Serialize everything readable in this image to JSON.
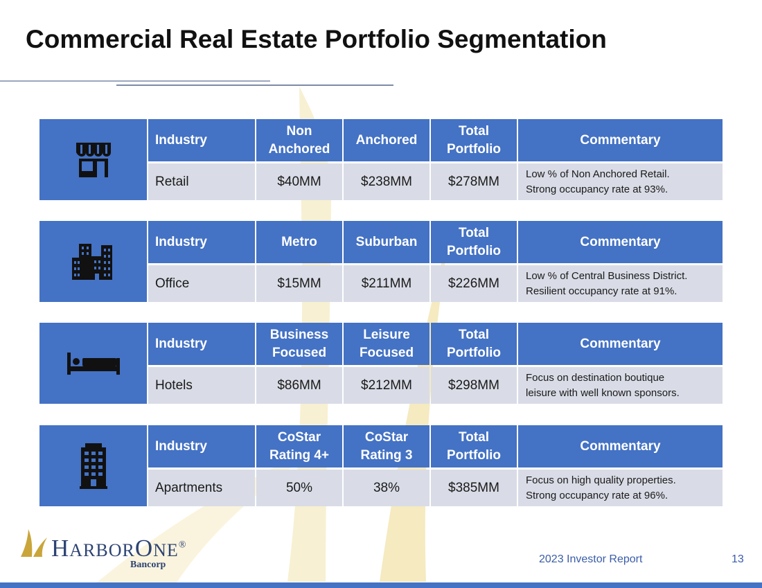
{
  "title": "Commercial Real Estate Portfolio Segmentation",
  "segments": [
    {
      "icon": "storefront-icon",
      "headers": [
        "Industry",
        "Non Anchored",
        "Anchored",
        "Total Portfolio",
        "Commentary"
      ],
      "row": [
        "Retail",
        "$40MM",
        "$238MM",
        "$278MM"
      ],
      "commentary": [
        "Low % of Non Anchored Retail.",
        "Strong occupancy rate at 93%."
      ]
    },
    {
      "icon": "office-buildings-icon",
      "headers": [
        "Industry",
        "Metro",
        "Suburban",
        "Total Portfolio",
        "Commentary"
      ],
      "row": [
        "Office",
        "$15MM",
        "$211MM",
        "$226MM"
      ],
      "commentary": [
        "Low % of Central Business District.",
        "Resilient occupancy rate at 91%."
      ]
    },
    {
      "icon": "hotel-bed-icon",
      "headers": [
        "Industry",
        "Business Focused",
        "Leisure Focused",
        "Total Portfolio",
        "Commentary"
      ],
      "row": [
        "Hotels",
        "$86MM",
        "$212MM",
        "$298MM"
      ],
      "commentary": [
        "Focus on destination boutique",
        "leisure with well known sponsors."
      ]
    },
    {
      "icon": "apartment-building-icon",
      "headers": [
        "Industry",
        "CoStar Rating 4+",
        "CoStar Rating 3",
        "Total Portfolio",
        "Commentary"
      ],
      "row": [
        "Apartments",
        "50%",
        "38%",
        "$385MM"
      ],
      "commentary": [
        "Focus on high quality properties.",
        "Strong occupancy rate at 96%."
      ]
    }
  ],
  "logo": {
    "name_part1": "H",
    "name_part2": "ARBOR",
    "name_part3": "O",
    "name_part4": "NE",
    "registered": "®",
    "sub": "Bancorp"
  },
  "footer": {
    "report": "2023 Investor Report",
    "page": "13"
  },
  "colors": {
    "header_blue": "#4472c4",
    "row_gray": "#d9dce6",
    "logo_gold": "#c9a53a",
    "logo_navy": "#2d4373"
  }
}
